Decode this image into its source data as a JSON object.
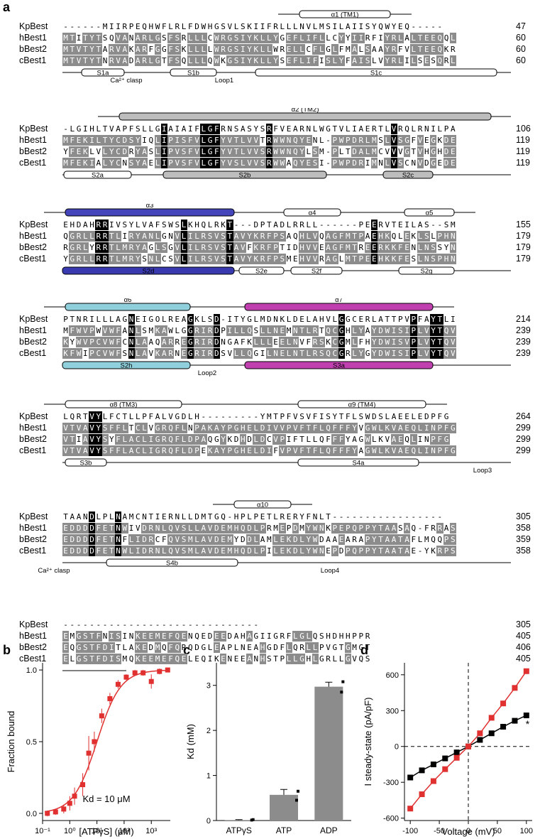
{
  "panel_labels": {
    "a": "a",
    "b": "b",
    "c": "c",
    "d": "d"
  },
  "alignment": {
    "blocks": [
      {
        "top_ss": [
          {
            "label": "α1 (TM1)"
          }
        ],
        "rows": [
          {
            "name": "KpBest",
            "seq": "------MIIRPEQHWFLRLFDWHGSVLSKIIFRLLLNVLMSILAIISYQWYEQ-----",
            "end": "47"
          },
          {
            "name": "hBest1",
            "seq": "MTITYTSQVANARLGSFSRLLLCWRGSIYKLLYGEFLIFLLCYYIIRFIYRLALTEEQQL",
            "end": "60"
          },
          {
            "name": "bBest2",
            "seq": "MTVTYTARVAKARFGGFSKLLLLWRGSIYKLLWRELLCFLGLFMALSAAYRFVLTEEQKR",
            "end": "60"
          },
          {
            "name": "cBest1",
            "seq": "MTVTYTNRVADARLGTFSQLLLQWKGSIYKLLYSEFLIFISLYFAISLVYRLILSESQRL",
            "end": "60"
          }
        ],
        "bottom_ss": [
          {
            "label": "S1a"
          },
          {
            "label": "S1b"
          },
          {
            "label": "S1c"
          }
        ],
        "notes": [
          {
            "label": "Ca²⁺ clasp"
          },
          {
            "label": "Loop1"
          }
        ]
      },
      {
        "top_ss": [
          {
            "label": "α2 (TM2)"
          }
        ],
        "rows": [
          {
            "name": "KpBest",
            "seq": "-LGIHLTVAPFSLLGIAIAIFLGFRNSASYSRFVEARNLWGTVLIAERTLVRQLRNILPA",
            "end": "106"
          },
          {
            "name": "hBest1",
            "seq": "MFEKILTYCDSYIQLIPISFVLGFYVTLVVTRWWNQYENL-PWPDRLMSLVSGFVEGKDE",
            "end": "119"
          },
          {
            "name": "bBest2",
            "seq": "YFEKLVLYCDRYASLIPVSFVLGFYVTLVVSRWWNQYLSM-PLTDALMCVVVGTVHGHDE",
            "end": "119"
          },
          {
            "name": "cBest1",
            "seq": "MFEKIALYCNSYAELIPVSFVLGFYVSLVVSRWWAQYESI-PWPDRIMNLVSCNVDGEDE",
            "end": "119"
          }
        ],
        "bottom_ss": [
          {
            "label": "S2a"
          },
          {
            "label": "S2b"
          },
          {
            "label": "S2c"
          }
        ],
        "notes": []
      },
      {
        "top_ss": [
          {
            "label": "α3"
          },
          {
            "label": "α4"
          },
          {
            "label": "α5"
          }
        ],
        "rows": [
          {
            "name": "KpBest",
            "seq": "EHDAHRRIVSYLVAFSWSLKHQLRKT---DPTADLRRLL------PEERVTEILAS--SM",
            "end": "155"
          },
          {
            "name": "hBest1",
            "seq": "QGRLLRRTLIRYANLGNVLILRSVSTAVYKRFPSAQHLVQAGFMTPAEHKQLEKLSLPHN",
            "end": "179"
          },
          {
            "name": "bBest2",
            "seq": "RGRLYRRTLMRYAGLSGVLILRSVSTAVFKRFPTIDHVVEAGFMTREERKKFENLNSSYN",
            "end": "179"
          },
          {
            "name": "cBest1",
            "seq": "YGRLLRRTLMRYSNLCSVLILRSVSTAVYKRFPSMEHVVRAGLMTPEEHKKFESLNSPHN",
            "end": "179"
          }
        ],
        "bottom_ss": [
          {
            "label": "S2d"
          },
          {
            "label": "S2e"
          },
          {
            "label": "S2f"
          },
          {
            "label": "S2g"
          }
        ],
        "notes": []
      },
      {
        "top_ss": [
          {
            "label": "α6"
          },
          {
            "label": "α7"
          }
        ],
        "rows": [
          {
            "name": "KpBest",
            "seq": "PTNRILLLAGNEIGOLREAGKLSD-ITYGLMDNKLDELAHVLGGCERLATTPVPFAYTLI",
            "end": "214"
          },
          {
            "name": "hBest1",
            "seq": "MFWVPWVWFANLSMKAWLGGRIRDPILLQSLLNEMNTLRTQCGHLYAYDWISIPLVYTQV",
            "end": "239"
          },
          {
            "name": "bBest2",
            "seq": "KYWVPCVWFCNLAAQARREGRIRDNGAFKLLLEELNVFRSKCGMLFHYDWISVPLVYTQV",
            "end": "239"
          },
          {
            "name": "cBest1",
            "seq": "KFWIPCVWFSNLAVKARNEGRIRDSVLLQGILNELNTLRSQCGRLYGYDWISIPLVYTQV",
            "end": "239"
          }
        ],
        "bottom_ss": [
          {
            "label": "S2h"
          },
          {
            "label": "S3a"
          }
        ],
        "notes": [
          {
            "label": "Loop2"
          }
        ]
      },
      {
        "top_ss": [
          {
            "label": "α8 (TM3)"
          },
          {
            "label": "α9 (TM4)"
          }
        ],
        "rows": [
          {
            "name": "KpBest",
            "seq": "LQRTVYLFCTLLPFALVGDLH---------YMTPFVSVFISYTFLSWDSLAEELEDPFG",
            "end": "264"
          },
          {
            "name": "hBest1",
            "seq": "VTVAVYSFFLTCLVGRQFLNPAKAYPGHELDIVVPVFTFLQFFFYVGWLKVAEQLINPFG",
            "end": "299"
          },
          {
            "name": "bBest2",
            "seq": "VTIAVYSYFLACLIGRQFLDPAQGYKDHDLDCVPIFTLLQFFFYAGWLKVAEQLINPFG",
            "end": "299"
          },
          {
            "name": "cBest1",
            "seq": "VTVAVYSFFLACLIGRQFLDPEKAYPGHELDIFVPVFTFLQFFFYAGWLKVAEQLINPFG",
            "end": "299"
          }
        ],
        "bottom_ss": [
          {
            "label": "S3b"
          },
          {
            "label": "S4a"
          }
        ],
        "notes": [
          {
            "label": "Loop3"
          }
        ]
      },
      {
        "top_ss": [
          {
            "label": "α10"
          }
        ],
        "rows": [
          {
            "name": "KpBest",
            "seq": "TAANDLPLNAMCNTIERNLLDMTGQ-HPLPETLRERYFNLT-----------------",
            "end": "305"
          },
          {
            "name": "hBest1",
            "seq": "EDDDDFETNWIVDRNLQVSLLAVDEMHQDLPRMEPDMYWNKPEPQPPYTAASAQ-FRRAS",
            "end": "358"
          },
          {
            "name": "bBest2",
            "seq": "EDDDDFETNFLIDRCFQVSMLAVDEMYDDLAMLEKDLYWDAAEARAPYTAATAFLMQQPS",
            "end": "359"
          },
          {
            "name": "cBest1",
            "seq": "EDDDDFETNWLIDRNLQVSMLAVDEMHQDLPILEKDLYWNEPDPQPPYTAATAE-YKRPS",
            "end": "358"
          }
        ],
        "bottom_ss": [
          {
            "label": "S4b"
          }
        ],
        "notes": [
          {
            "label": "Ca²⁺ clasp"
          },
          {
            "label": "Loop4"
          }
        ]
      },
      {
        "top_ss": [],
        "rows": [
          {
            "name": "KpBest",
            "seq": "------------------------------",
            "end": "305"
          },
          {
            "name": "hBest1",
            "seq": "EMGSTFNISINKEEMEFQENQEDEEDAHAGIIGRFLGLQSHDHHPPR",
            "end": "405"
          },
          {
            "name": "bBest2",
            "seq": "EQGSTFDITLAKEDMQFQRQDGLEAPLNEAHGDFLQRLLPVGTGMGT",
            "end": "406"
          },
          {
            "name": "cBest1",
            "seq": "ELGSTFDISMQKEEMEFQELEQIKENEEANHSTPLLGHLGRLLGVQS",
            "end": "405"
          }
        ],
        "bottom_ss": [],
        "notes": []
      }
    ]
  },
  "chart_data": [
    {
      "panel": "b",
      "type": "scatter",
      "xlabel": "[ATPγS] (μM)",
      "ylabel": "Fraction bound",
      "xscale": "log",
      "xlim": [
        0.1,
        5000
      ],
      "ylim": [
        -0.05,
        1.05
      ],
      "xticks": [
        "10⁻¹",
        "10⁰",
        "10¹",
        "10²",
        "10³"
      ],
      "yticks": [
        "0.0",
        "0.5",
        "1.0"
      ],
      "annotation": "Kd = 10 μM",
      "x": [
        0.15,
        0.3,
        0.6,
        1.0,
        1.5,
        3,
        5,
        8,
        15,
        30,
        60,
        120,
        250,
        500,
        1000,
        2000,
        4000
      ],
      "y": [
        0.0,
        0.01,
        0.03,
        0.07,
        0.12,
        0.2,
        0.42,
        0.5,
        0.68,
        0.8,
        0.9,
        0.95,
        0.98,
        0.98,
        0.92,
        0.99,
        1.0
      ],
      "error": [
        0.02,
        0.02,
        0.03,
        0.05,
        0.06,
        0.08,
        0.12,
        0.07,
        0.05,
        0.04,
        0.03,
        0.02,
        0.02,
        0.02,
        0.05,
        0.02,
        0.01
      ],
      "kd": 10,
      "color": "#e03030"
    },
    {
      "panel": "c",
      "type": "bar",
      "categories": [
        "ATPγS",
        "ATP",
        "ADP"
      ],
      "values": [
        0.01,
        0.57,
        2.97
      ],
      "errors": [
        0.01,
        0.12,
        0.1
      ],
      "ylabel": "Kd (mM)",
      "ylim": [
        0,
        3.5
      ],
      "yticks": [
        "0",
        "1",
        "2",
        "3"
      ],
      "points": [
        [
          0.01,
          0.02
        ],
        [
          0.45,
          0.65
        ],
        [
          2.85,
          3.08
        ]
      ],
      "bar_color": "#8c8c8c"
    },
    {
      "panel": "d",
      "type": "line",
      "xlabel": "Voltage (mV)",
      "ylabel": "I steady-state (pA/pF)",
      "xlim": [
        -110,
        110
      ],
      "ylim": [
        -620,
        700
      ],
      "xticks": [
        "-100",
        "-50",
        "0",
        "50",
        "100"
      ],
      "yticks": [
        "-600",
        "-300",
        "0",
        "300",
        "600"
      ],
      "annotation": "*",
      "series": [
        {
          "x": [
            -100,
            -80,
            -60,
            -40,
            -20,
            0,
            20,
            40,
            60,
            80,
            100
          ],
          "y": [
            -260,
            -200,
            -150,
            -100,
            -50,
            0,
            55,
            110,
            165,
            215,
            260
          ],
          "color": "#000000"
        },
        {
          "x": [
            -100,
            -80,
            -60,
            -40,
            -20,
            0,
            20,
            40,
            60,
            80,
            100
          ],
          "y": [
            -520,
            -400,
            -290,
            -190,
            -95,
            0,
            110,
            240,
            360,
            490,
            630
          ],
          "color": "#e03030"
        }
      ]
    }
  ]
}
